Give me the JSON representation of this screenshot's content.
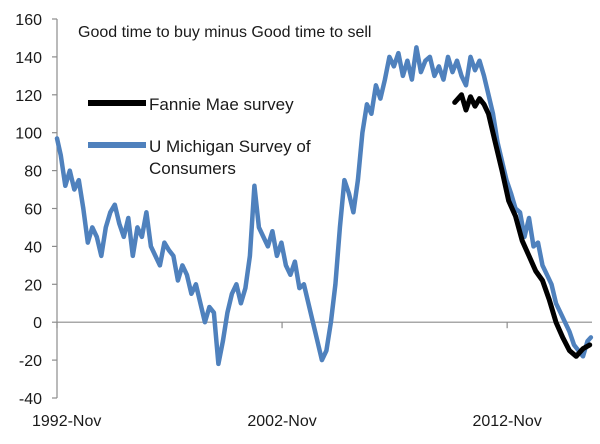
{
  "chart_data": {
    "type": "line",
    "title": "Good time to buy minus Good time to sell",
    "xlabel": "",
    "ylabel": "",
    "ylim": [
      -40,
      160
    ],
    "yticks": [
      -40,
      -20,
      0,
      20,
      40,
      60,
      80,
      100,
      120,
      140,
      160
    ],
    "xlim": [
      1992.83,
      2016.6
    ],
    "xticks": [
      {
        "label": "1992-Nov",
        "x": 1992.83
      },
      {
        "label": "2002-Nov",
        "x": 2002.83
      },
      {
        "label": "2012-Nov",
        "x": 2012.83
      }
    ],
    "legend": {
      "placement": "upper-left",
      "entries": [
        "Fannie Mae survey",
        "U Michigan Survey of|Consumers"
      ]
    },
    "series": [
      {
        "name": "Fannie Mae survey",
        "color": "#000000",
        "x": [
          2010.5,
          2010.8,
          2011.0,
          2011.2,
          2011.4,
          2011.6,
          2011.8,
          2012.0,
          2012.3,
          2012.6,
          2012.9,
          2013.2,
          2013.5,
          2013.8,
          2014.1,
          2014.4,
          2014.7,
          2015.0,
          2015.3,
          2015.6,
          2015.9,
          2016.2,
          2016.5
        ],
        "values": [
          116,
          120,
          112,
          119,
          114,
          118,
          115,
          110,
          95,
          80,
          64,
          56,
          43,
          35,
          27,
          22,
          12,
          0,
          -8,
          -15,
          -18,
          -14,
          -12
        ]
      },
      {
        "name": "U Michigan Survey of Consumers",
        "color": "#4f81bd",
        "x": [
          1992.83,
          1993.0,
          1993.2,
          1993.4,
          1993.6,
          1993.8,
          1994.0,
          1994.2,
          1994.4,
          1994.6,
          1994.8,
          1995.0,
          1995.2,
          1995.4,
          1995.6,
          1995.8,
          1996.0,
          1996.2,
          1996.4,
          1996.6,
          1996.8,
          1997.0,
          1997.2,
          1997.4,
          1997.6,
          1997.8,
          1998.0,
          1998.2,
          1998.4,
          1998.6,
          1998.8,
          1999.0,
          1999.2,
          1999.4,
          1999.6,
          1999.8,
          2000.0,
          2000.2,
          2000.4,
          2000.6,
          2000.8,
          2001.0,
          2001.2,
          2001.4,
          2001.6,
          2001.8,
          2002.0,
          2002.2,
          2002.4,
          2002.6,
          2002.8,
          2003.0,
          2003.2,
          2003.4,
          2003.6,
          2003.8,
          2004.0,
          2004.2,
          2004.4,
          2004.6,
          2004.8,
          2005.0,
          2005.2,
          2005.4,
          2005.6,
          2005.8,
          2006.0,
          2006.2,
          2006.4,
          2006.6,
          2006.8,
          2007.0,
          2007.2,
          2007.4,
          2007.6,
          2007.8,
          2008.0,
          2008.2,
          2008.4,
          2008.6,
          2008.8,
          2009.0,
          2009.2,
          2009.4,
          2009.6,
          2009.8,
          2010.0,
          2010.2,
          2010.4,
          2010.6,
          2010.8,
          2011.0,
          2011.2,
          2011.4,
          2011.6,
          2011.8,
          2012.0,
          2012.2,
          2012.4,
          2012.6,
          2012.8,
          2013.0,
          2013.2,
          2013.4,
          2013.6,
          2013.8,
          2014.0,
          2014.2,
          2014.4,
          2014.6,
          2014.8,
          2015.0,
          2015.2,
          2015.4,
          2015.6,
          2015.8,
          2016.0,
          2016.2,
          2016.4,
          2016.55
        ],
        "values": [
          97,
          88,
          72,
          80,
          70,
          75,
          60,
          42,
          50,
          45,
          35,
          50,
          58,
          62,
          52,
          45,
          55,
          35,
          50,
          45,
          58,
          40,
          35,
          30,
          42,
          38,
          35,
          22,
          30,
          25,
          15,
          20,
          10,
          0,
          8,
          5,
          -22,
          -10,
          5,
          15,
          20,
          10,
          18,
          35,
          72,
          50,
          45,
          40,
          48,
          35,
          42,
          30,
          25,
          32,
          18,
          20,
          10,
          0,
          -10,
          -20,
          -15,
          0,
          20,
          50,
          75,
          68,
          58,
          75,
          100,
          115,
          110,
          125,
          118,
          128,
          140,
          135,
          142,
          130,
          138,
          128,
          145,
          132,
          138,
          140,
          130,
          135,
          128,
          140,
          132,
          138,
          130,
          125,
          140,
          133,
          138,
          130,
          120,
          110,
          95,
          85,
          75,
          68,
          60,
          58,
          45,
          55,
          40,
          42,
          30,
          25,
          20,
          10,
          5,
          0,
          -5,
          -12,
          -15,
          -18,
          -10,
          -8
        ]
      }
    ]
  }
}
